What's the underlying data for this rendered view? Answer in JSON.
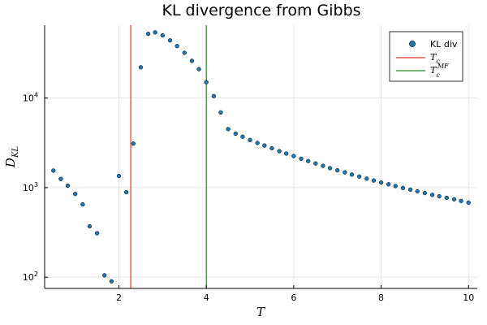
{
  "chart_data": {
    "type": "scatter",
    "title": "KL divergence from Gibbs",
    "xlabel": "T",
    "ylabel": "D_KL",
    "xlim": [
      0.3,
      10.2
    ],
    "ylim": [
      75,
      65000
    ],
    "yscale": "log",
    "grid": true,
    "legend_position": "top-right",
    "x_ticks": [
      2,
      4,
      6,
      8,
      10
    ],
    "y_ticks": [
      100,
      1000,
      10000
    ],
    "series": [
      {
        "name": "KL div",
        "kind": "scatter",
        "color": "#1f77b4",
        "points": [
          {
            "x": 0.5,
            "y": 1550
          },
          {
            "x": 0.67,
            "y": 1250
          },
          {
            "x": 0.83,
            "y": 1050
          },
          {
            "x": 1.0,
            "y": 850
          },
          {
            "x": 1.17,
            "y": 650
          },
          {
            "x": 1.33,
            "y": 370
          },
          {
            "x": 1.5,
            "y": 310
          },
          {
            "x": 1.67,
            "y": 105
          },
          {
            "x": 1.83,
            "y": 90
          },
          {
            "x": 2.0,
            "y": 1350
          },
          {
            "x": 2.17,
            "y": 890
          },
          {
            "x": 2.33,
            "y": 3100
          },
          {
            "x": 2.5,
            "y": 22000
          },
          {
            "x": 2.67,
            "y": 52000
          },
          {
            "x": 2.83,
            "y": 54000
          },
          {
            "x": 3.0,
            "y": 50000
          },
          {
            "x": 3.17,
            "y": 44000
          },
          {
            "x": 3.33,
            "y": 38000
          },
          {
            "x": 3.5,
            "y": 32000
          },
          {
            "x": 3.67,
            "y": 26000
          },
          {
            "x": 3.83,
            "y": 21000
          },
          {
            "x": 4.0,
            "y": 15000
          },
          {
            "x": 4.17,
            "y": 10500
          },
          {
            "x": 4.33,
            "y": 6900
          },
          {
            "x": 4.5,
            "y": 4500
          },
          {
            "x": 4.67,
            "y": 4000
          },
          {
            "x": 4.83,
            "y": 3700
          },
          {
            "x": 5.0,
            "y": 3400
          },
          {
            "x": 5.17,
            "y": 3150
          },
          {
            "x": 5.33,
            "y": 2950
          },
          {
            "x": 5.5,
            "y": 2750
          },
          {
            "x": 5.67,
            "y": 2550
          },
          {
            "x": 5.83,
            "y": 2400
          },
          {
            "x": 6.0,
            "y": 2250
          },
          {
            "x": 6.17,
            "y": 2100
          },
          {
            "x": 6.33,
            "y": 1980
          },
          {
            "x": 6.5,
            "y": 1860
          },
          {
            "x": 6.67,
            "y": 1750
          },
          {
            "x": 6.83,
            "y": 1650
          },
          {
            "x": 7.0,
            "y": 1560
          },
          {
            "x": 7.17,
            "y": 1480
          },
          {
            "x": 7.33,
            "y": 1400
          },
          {
            "x": 7.5,
            "y": 1330
          },
          {
            "x": 7.67,
            "y": 1260
          },
          {
            "x": 7.83,
            "y": 1200
          },
          {
            "x": 8.0,
            "y": 1140
          },
          {
            "x": 8.17,
            "y": 1090
          },
          {
            "x": 8.33,
            "y": 1040
          },
          {
            "x": 8.5,
            "y": 990
          },
          {
            "x": 8.67,
            "y": 950
          },
          {
            "x": 8.83,
            "y": 910
          },
          {
            "x": 9.0,
            "y": 870
          },
          {
            "x": 9.17,
            "y": 830
          },
          {
            "x": 9.33,
            "y": 800
          },
          {
            "x": 9.5,
            "y": 770
          },
          {
            "x": 9.67,
            "y": 740
          },
          {
            "x": 9.83,
            "y": 710
          },
          {
            "x": 10.0,
            "y": 680
          }
        ]
      },
      {
        "name": "T_c",
        "kind": "vline",
        "x": 2.27,
        "color": "#e3382c"
      },
      {
        "name": "T_c^MF",
        "kind": "vline",
        "x": 4.0,
        "color": "#2a8a2a"
      }
    ]
  }
}
